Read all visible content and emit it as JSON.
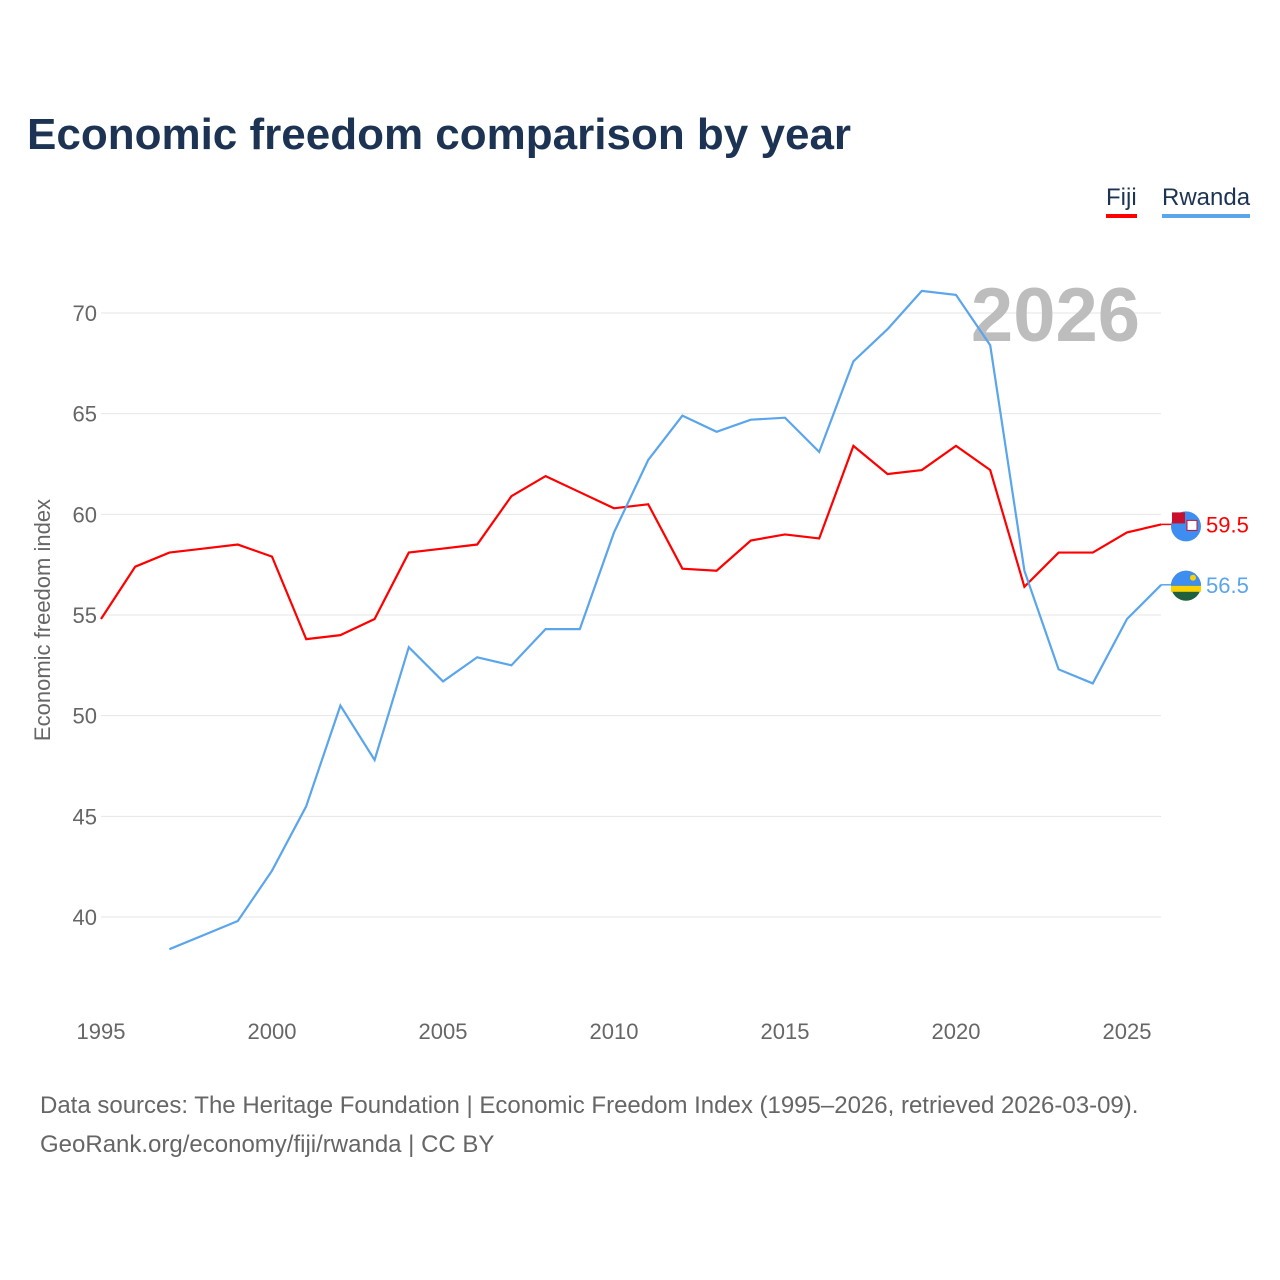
{
  "title": "Economic freedom comparison by year",
  "footer": {
    "line1": "Data sources: The Heritage Foundation | Economic Freedom Index (1995–2026, retrieved 2026-03-09).",
    "line2": "GeoRank.org/economy/fiji/rwanda | CC BY"
  },
  "chart_data": {
    "type": "line",
    "title": "Economic freedom comparison by year",
    "xlabel": "",
    "ylabel": "Economic freedom index",
    "year_watermark": "2026",
    "xlim": [
      1995,
      2026
    ],
    "ylim": [
      35,
      72
    ],
    "x_ticks": [
      1995,
      2000,
      2005,
      2010,
      2015,
      2020,
      2025
    ],
    "y_ticks": [
      40,
      45,
      50,
      55,
      60,
      65,
      70
    ],
    "grid": true,
    "legend_position": "top-right",
    "series": [
      {
        "name": "Fiji",
        "color": "#ff0000",
        "end_label": "59.5",
        "x": [
          1995,
          1996,
          1997,
          1998,
          1999,
          2000,
          2001,
          2002,
          2003,
          2004,
          2005,
          2006,
          2007,
          2008,
          2009,
          2010,
          2011,
          2012,
          2013,
          2014,
          2015,
          2016,
          2017,
          2018,
          2019,
          2020,
          2021,
          2022,
          2023,
          2024,
          2025,
          2026
        ],
        "values": [
          54.8,
          57.4,
          58.1,
          58.3,
          58.5,
          57.9,
          53.8,
          54.0,
          54.8,
          58.1,
          58.3,
          58.5,
          60.9,
          61.9,
          61.1,
          60.3,
          60.5,
          57.3,
          57.2,
          58.7,
          59.0,
          58.8,
          63.4,
          62.0,
          62.2,
          63.4,
          62.2,
          56.4,
          58.1,
          58.1,
          59.1,
          59.5
        ]
      },
      {
        "name": "Rwanda",
        "color": "#5aa5ec",
        "end_label": "56.5",
        "x": [
          1997,
          1998,
          1999,
          2000,
          2001,
          2002,
          2003,
          2004,
          2005,
          2006,
          2007,
          2008,
          2009,
          2010,
          2011,
          2012,
          2013,
          2014,
          2015,
          2016,
          2017,
          2018,
          2019,
          2020,
          2021,
          2022,
          2023,
          2024,
          2025,
          2026
        ],
        "values": [
          38.4,
          39.1,
          39.8,
          42.3,
          45.5,
          50.5,
          47.8,
          53.4,
          51.7,
          52.9,
          52.5,
          54.3,
          54.3,
          59.1,
          62.7,
          64.9,
          64.1,
          64.7,
          64.8,
          63.1,
          67.6,
          69.2,
          71.1,
          70.9,
          68.4,
          57.2,
          52.3,
          51.6,
          54.8,
          56.5
        ]
      }
    ]
  }
}
